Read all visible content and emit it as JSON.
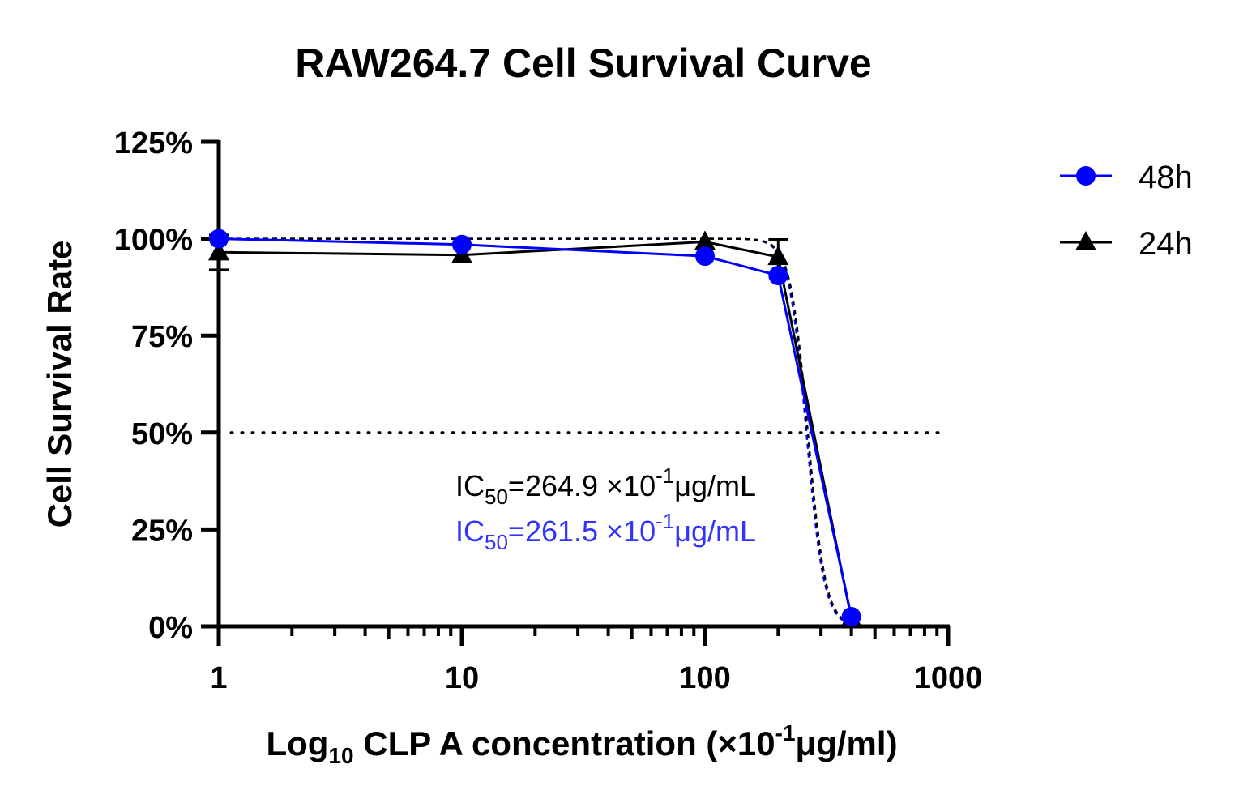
{
  "chart_data": {
    "type": "line",
    "title": "RAW264.7 Cell Survival Curve",
    "xlabel": {
      "prefix": "Log",
      "sub": "10",
      "main": " CLP A concentration (×10",
      "sup": "-1",
      "suffix": "μg/ml)"
    },
    "ylabel": "Cell Survival Rate",
    "x_scale": "log10",
    "xlim": [
      1,
      1000
    ],
    "ylim": [
      0,
      125
    ],
    "x_ticks": [
      1,
      10,
      100,
      1000
    ],
    "x_tick_labels": [
      "1",
      "10",
      "100",
      "1000"
    ],
    "y_ticks": [
      0,
      25,
      50,
      75,
      100,
      125
    ],
    "y_tick_labels": [
      "0%",
      "25%",
      "50%",
      "75%",
      "100%",
      "125%"
    ],
    "reference_line": {
      "y": 50,
      "style": "dotted",
      "color": "#000000"
    },
    "legend_position": "top-right",
    "series": [
      {
        "name": "48h",
        "marker": "circle",
        "color": "#0000ff",
        "x": [
          1,
          10,
          100,
          200,
          400
        ],
        "y": [
          100,
          98.5,
          95.5,
          90.5,
          2.5
        ],
        "fit": {
          "top": 100,
          "bottom": 0,
          "ic50": 261.5,
          "hill": 12
        }
      },
      {
        "name": "24h",
        "marker": "triangle",
        "color": "#000000",
        "x": [
          1,
          10,
          100,
          200,
          400
        ],
        "y": [
          96.5,
          95.8,
          99.2,
          95.3,
          2
        ],
        "y_error": [
          4.5,
          0,
          0,
          4.5,
          0
        ],
        "fit": {
          "top": 100,
          "bottom": 0,
          "ic50": 264.9,
          "hill": 12
        }
      }
    ],
    "annotations": [
      {
        "prefix": "IC",
        "sub": "50",
        "main": "=264.9 ×10",
        "sup": "-1",
        "suffix": "μg/mL",
        "color": "#000000"
      },
      {
        "prefix": "IC",
        "sub": "50",
        "main": "=261.5 ×10",
        "sup": "-1",
        "suffix": "μg/mL",
        "color": "#3333ff"
      }
    ]
  }
}
